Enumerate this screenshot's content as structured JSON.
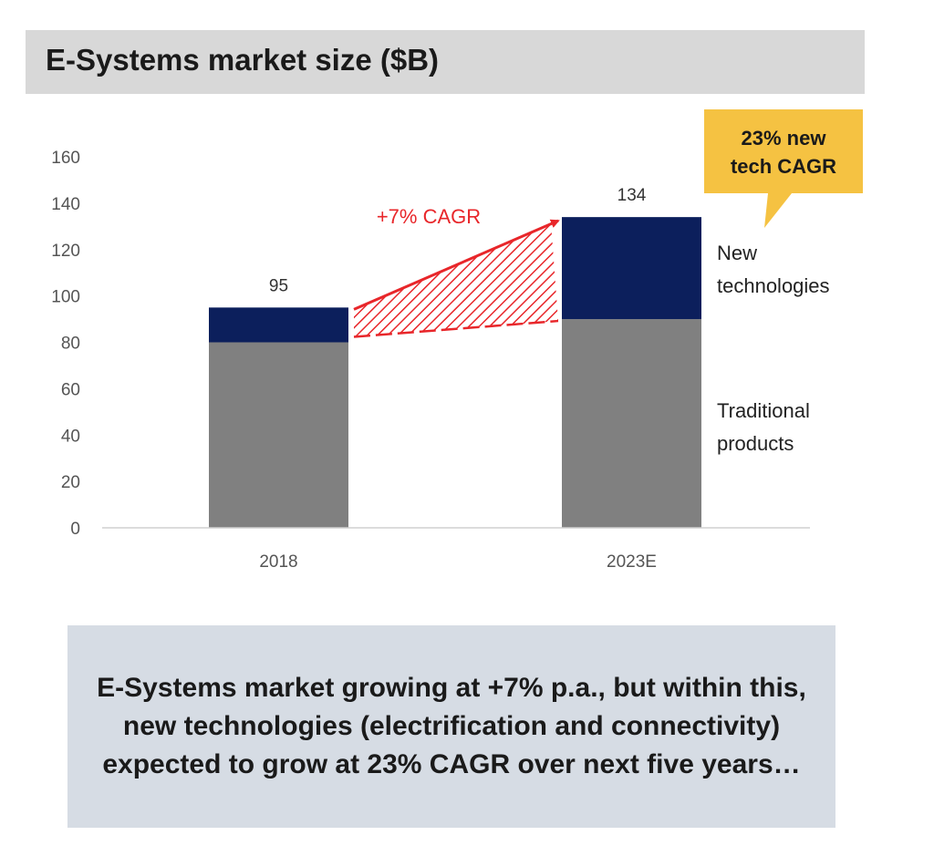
{
  "title": "E-Systems market size ($B)",
  "callout": {
    "line1": "23% new",
    "line2": "tech CAGR",
    "color": "#f5c242"
  },
  "legend": {
    "new": {
      "line1": "New",
      "line2": "technologies"
    },
    "traditional": {
      "line1": "Traditional",
      "line2": "products"
    }
  },
  "summary": "E-Systems market growing at +7% p.a., but within this, new technologies (electrification and connectivity) expected to grow at 23% CAGR over next five years…",
  "chart_data": {
    "type": "bar",
    "stacked": true,
    "categories": [
      "2018",
      "2023E"
    ],
    "series": [
      {
        "name": "Traditional products",
        "values": [
          80,
          90
        ],
        "color": "#808080"
      },
      {
        "name": "New technologies",
        "values": [
          15,
          44
        ],
        "color": "#0c1f5c"
      }
    ],
    "totals": [
      95,
      134
    ],
    "ylim": [
      0,
      160
    ],
    "yticks": [
      0,
      20,
      40,
      60,
      80,
      100,
      120,
      140,
      160
    ],
    "grid": false,
    "annotation": {
      "text": "+7% CAGR",
      "color": "#e8262a"
    }
  }
}
